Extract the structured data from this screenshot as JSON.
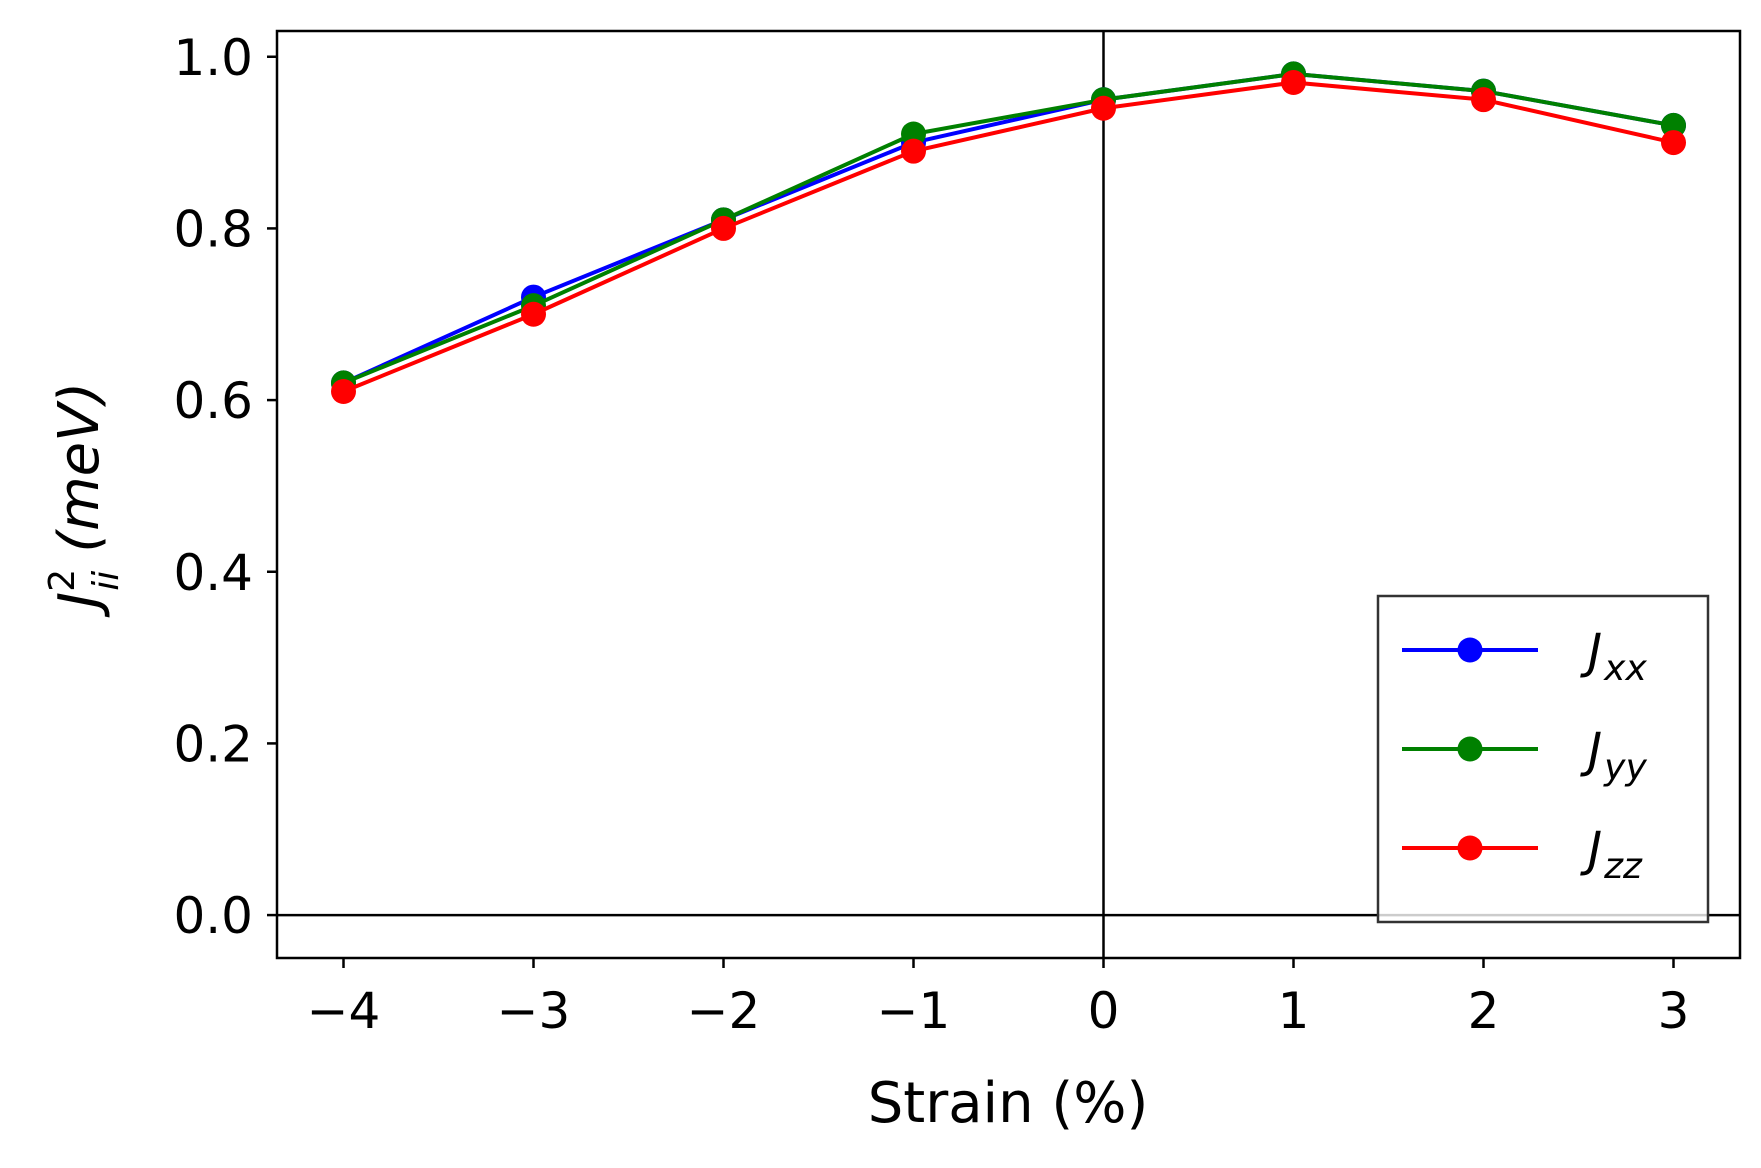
{
  "chart_data": {
    "type": "line",
    "title": "",
    "xlabel": "Strain (%)",
    "ylabel": {
      "base": "J",
      "superscript": "2",
      "subscript": "ii",
      "unit": "(meV)"
    },
    "xlim": [
      -4.35,
      3.35
    ],
    "ylim": [
      -0.05,
      1.03
    ],
    "xticks": [
      {
        "value": -4,
        "label": "−4"
      },
      {
        "value": -3,
        "label": "−3"
      },
      {
        "value": -2,
        "label": "−2"
      },
      {
        "value": -1,
        "label": "−1"
      },
      {
        "value": 0,
        "label": "0"
      },
      {
        "value": 1,
        "label": "1"
      },
      {
        "value": 2,
        "label": "2"
      },
      {
        "value": 3,
        "label": "3"
      }
    ],
    "yticks": [
      {
        "value": 0.0,
        "label": "0.0"
      },
      {
        "value": 0.2,
        "label": "0.2"
      },
      {
        "value": 0.4,
        "label": "0.4"
      },
      {
        "value": 0.6,
        "label": "0.6"
      },
      {
        "value": 0.8,
        "label": "0.8"
      },
      {
        "value": 1.0,
        "label": "1.0"
      }
    ],
    "reference_lines": {
      "x": 0,
      "y": 0
    },
    "x": [
      -4,
      -3,
      -2,
      -1,
      0,
      1,
      2,
      3
    ],
    "series": [
      {
        "key": "jxx",
        "name": "J",
        "subscript": "xx",
        "color": "#0000ff",
        "values": [
          0.62,
          0.72,
          0.81,
          0.9,
          0.95,
          0.98,
          0.96,
          0.92
        ]
      },
      {
        "key": "jyy",
        "name": "J",
        "subscript": "yy",
        "color": "#008000",
        "values": [
          0.62,
          0.71,
          0.81,
          0.91,
          0.95,
          0.98,
          0.96,
          0.92
        ]
      },
      {
        "key": "jzz",
        "name": "J",
        "subscript": "zz",
        "color": "#ff0000",
        "values": [
          0.61,
          0.7,
          0.8,
          0.89,
          0.94,
          0.97,
          0.95,
          0.9
        ]
      }
    ],
    "legend_position": "lower-right",
    "grid": false
  }
}
